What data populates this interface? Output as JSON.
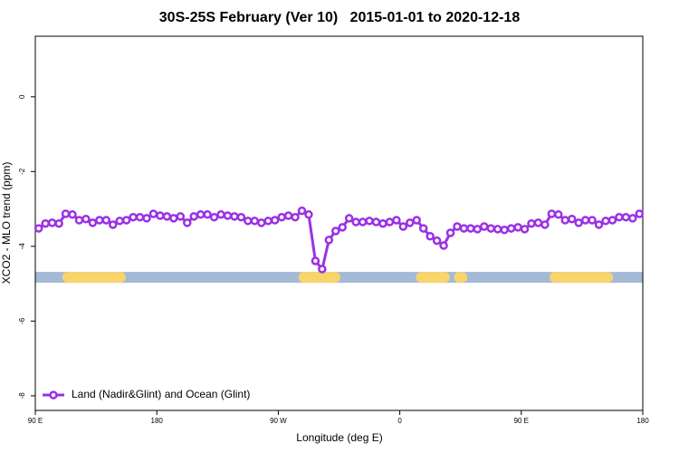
{
  "chart_data": {
    "type": "line",
    "title": "30S-25S February (Ver 10)   2015-01-01 to 2020-12-18",
    "xlabel": "Longitude (deg E)",
    "ylabel": "XCO2 - MLO trend (ppm)",
    "xlim": [
      90,
      540
    ],
    "xticks": [
      {
        "value": 90,
        "label": "90 E"
      },
      {
        "value": 180,
        "label": "180"
      },
      {
        "value": 270,
        "label": "90 W"
      },
      {
        "value": 360,
        "label": "0"
      },
      {
        "value": 450,
        "label": "90 E"
      },
      {
        "value": 540,
        "label": "180"
      }
    ],
    "ylim": [
      -8.39,
      1.62
    ],
    "yticks": [
      0,
      -2,
      -4,
      -6,
      -8
    ],
    "legend": "bottom-left",
    "series": [
      {
        "name": "Land (Nadir&Glint) and Ocean (Glint)",
        "color": "#9b30e6",
        "x": [
          92.5,
          97.5,
          102.5,
          107.5,
          112.5,
          117.5,
          122.5,
          127.5,
          132.5,
          137.5,
          142.5,
          147.5,
          152.5,
          157.5,
          162.5,
          167.5,
          172.5,
          177.5,
          182.5,
          187.5,
          192.5,
          197.5,
          202.5,
          207.5,
          212.5,
          217.5,
          222.5,
          227.5,
          232.5,
          237.5,
          242.5,
          247.5,
          252.5,
          257.5,
          262.5,
          267.5,
          272.5,
          277.5,
          282.5,
          287.5,
          292.5,
          297.5,
          302.5,
          307.5,
          312.5,
          317.5,
          322.5,
          327.5,
          332.5,
          337.5,
          342.5,
          347.5,
          352.5,
          357.5,
          362.5,
          367.5,
          372.5,
          377.5,
          382.5,
          387.5,
          392.5,
          397.5,
          402.5,
          407.5,
          412.5,
          417.5,
          422.5,
          427.5,
          432.5,
          437.5,
          442.5,
          447.5,
          452.5,
          457.5,
          462.5,
          467.5,
          472.5,
          477.5,
          482.5,
          487.5,
          492.5,
          497.5,
          502.5,
          507.5,
          512.5,
          517.5,
          522.5,
          527.5,
          532.5,
          537.5
        ],
        "values": [
          -3.52,
          -3.39,
          -3.37,
          -3.39,
          -3.13,
          -3.15,
          -3.3,
          -3.27,
          -3.37,
          -3.3,
          -3.3,
          -3.42,
          -3.32,
          -3.3,
          -3.22,
          -3.22,
          -3.25,
          -3.13,
          -3.18,
          -3.2,
          -3.25,
          -3.2,
          -3.37,
          -3.2,
          -3.15,
          -3.15,
          -3.22,
          -3.15,
          -3.18,
          -3.2,
          -3.22,
          -3.32,
          -3.32,
          -3.37,
          -3.32,
          -3.3,
          -3.22,
          -3.18,
          -3.22,
          -3.05,
          -3.15,
          -4.39,
          -4.61,
          -3.83,
          -3.59,
          -3.49,
          -3.25,
          -3.35,
          -3.35,
          -3.32,
          -3.35,
          -3.39,
          -3.35,
          -3.3,
          -3.47,
          -3.37,
          -3.3,
          -3.52,
          -3.73,
          -3.85,
          -3.98,
          -3.64,
          -3.47,
          -3.52,
          -3.52,
          -3.54,
          -3.47,
          -3.52,
          -3.54,
          -3.56,
          -3.52,
          -3.49,
          -3.54,
          -3.39,
          -3.37,
          -3.42,
          -3.13,
          -3.15,
          -3.3,
          -3.27,
          -3.37,
          -3.3,
          -3.3,
          -3.42,
          -3.32,
          -3.3,
          -3.22,
          -3.22,
          -3.25,
          -3.13
        ]
      }
    ],
    "surface_band": {
      "y": -4.83,
      "ocean_color": "#a3b9d6",
      "land_color": "#f8d46c",
      "land_segments": [
        [
          114,
          153
        ],
        [
          289,
          312
        ],
        [
          376,
          393
        ],
        [
          404,
          406
        ],
        [
          475,
          514
        ]
      ]
    }
  }
}
